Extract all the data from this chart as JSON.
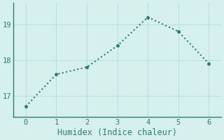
{
  "x": [
    0,
    1,
    2,
    3,
    4,
    5,
    6
  ],
  "y": [
    16.7,
    17.6,
    17.8,
    18.4,
    19.2,
    18.8,
    17.9
  ],
  "line_color": "#2e7d72",
  "marker": "o",
  "marker_size": 3,
  "line_style": "dotted",
  "line_width": 1.5,
  "xlabel": "Humidex (Indice chaleur)",
  "xlim": [
    -0.4,
    6.4
  ],
  "ylim": [
    16.4,
    19.6
  ],
  "yticks": [
    17,
    18,
    19
  ],
  "xticks": [
    0,
    1,
    2,
    3,
    4,
    5,
    6
  ],
  "bg_color": "#d6f0ee",
  "grid_color": "#b8dede",
  "spine_color": "#2e7d72",
  "tick_color": "#2e7d72",
  "label_color": "#2e7d72",
  "tick_fontsize": 7.5,
  "xlabel_fontsize": 8.5
}
